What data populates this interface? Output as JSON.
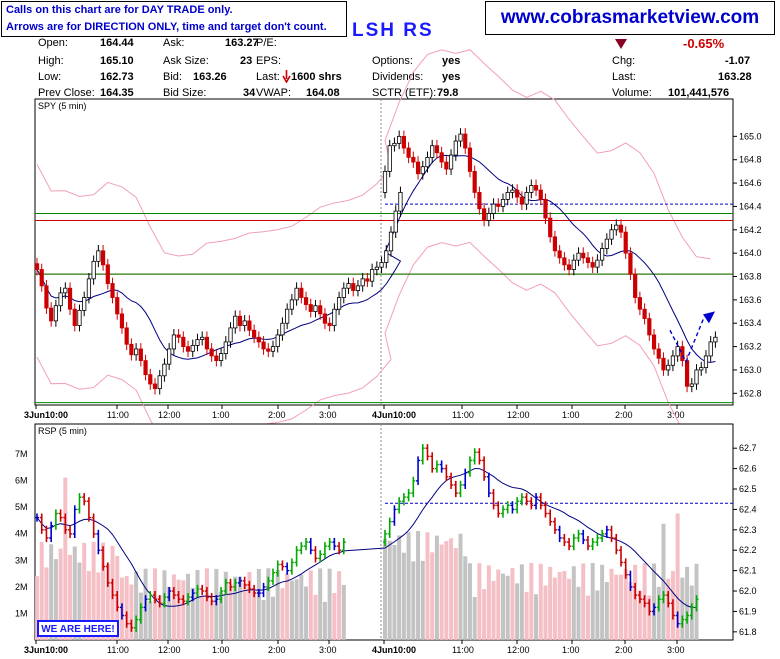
{
  "notes": {
    "line1": "Calls on this chart are for DAY TRADE only.",
    "line2": "Arrows are for DIRECTION ONLY, time and target don't count."
  },
  "website": "www.cobrasmarketview.com",
  "symbol": "LSH RS",
  "quote": {
    "open_label": "Open:",
    "open": "164.44",
    "high_label": "High:",
    "high": "165.10",
    "low_label": "Low:",
    "low": "162.73",
    "prev_label": "Prev Close:",
    "prev": "164.35",
    "ask_label": "Ask:",
    "ask": "163.27",
    "asksize_label": "Ask Size:",
    "asksize": "23",
    "bid_label": "Bid:",
    "bid": "163.26",
    "bidsize_label": "Bid Size:",
    "bidsize": "34",
    "pe_label": "P/E:",
    "eps_label": "EPS:",
    "last_label": "Last:",
    "last_trade": "1600 shrs",
    "vwap_label": "VWAP:",
    "vwap": "164.08",
    "options_label": "Options:",
    "options": "yes",
    "dividends_label": "Dividends:",
    "dividends": "yes",
    "sctr_label": "SCTR (ETF):",
    "sctr": "79.8",
    "chg_pct": "-0.65%",
    "chg_label": "Chg:",
    "chg": "-1.07",
    "lastp_label": "Last:",
    "lastp": "163.28",
    "volume_label": "Volume:",
    "volume": "101,441,576"
  },
  "colors": {
    "up": "#00aa00",
    "down": "#cc0000",
    "blue": "#0000cc",
    "ma": "#000080",
    "band": "#f2a0b4",
    "red_line": "#cc0000",
    "green_line": "#008800"
  },
  "badge": "WE ARE HERE!",
  "chart_data": [
    {
      "type": "candlestick",
      "title": "SPY (5 min)",
      "ylim": [
        162.7,
        165.2
      ],
      "y_ticks": [
        "165.0",
        "164.8",
        "164.6",
        "164.4",
        "164.2",
        "164.0",
        "163.8",
        "163.6",
        "163.4",
        "163.2",
        "163.0",
        "162.8"
      ],
      "y_tick_values": [
        165.0,
        164.8,
        164.6,
        164.4,
        164.2,
        164.0,
        163.8,
        163.6,
        163.4,
        163.2,
        163.0,
        162.8
      ],
      "x_ticks": [
        "3Jun10:00",
        "11:00",
        "12:00",
        "1:00",
        "2:00",
        "3:00",
        "4Jun10:00",
        "11:00",
        "12:00",
        "1:00",
        "2:00",
        "3:00"
      ],
      "bars_per_day": 78,
      "horizontal_lines": [
        {
          "value": 164.28,
          "color": "red"
        },
        {
          "value": 163.82,
          "color": "red"
        },
        {
          "value": 164.34,
          "color": "green"
        },
        {
          "value": 163.82,
          "color": "green"
        },
        {
          "value": 162.72,
          "color": "green"
        },
        {
          "value": 164.42,
          "color": "blue-dashed"
        }
      ],
      "arrow": {
        "from": 163.34,
        "via": 163.07,
        "to": 163.45
      },
      "closes": [
        163.86,
        163.72,
        163.53,
        163.42,
        163.55,
        163.66,
        163.7,
        163.52,
        163.38,
        163.51,
        163.62,
        163.78,
        163.93,
        164.02,
        163.9,
        163.74,
        163.62,
        163.48,
        163.36,
        163.22,
        163.13,
        163.18,
        163.08,
        162.96,
        162.88,
        162.84,
        162.95,
        163.05,
        163.18,
        163.3,
        163.28,
        163.2,
        163.16,
        163.21,
        163.26,
        163.28,
        163.18,
        163.12,
        163.08,
        163.14,
        163.24,
        163.36,
        163.46,
        163.38,
        163.42,
        163.34,
        163.28,
        163.24,
        163.18,
        163.16,
        163.2,
        163.3,
        163.4,
        163.52,
        163.6,
        163.7,
        163.62,
        163.56,
        163.5,
        163.55,
        163.48,
        163.4,
        163.38,
        163.52,
        163.62,
        163.7,
        163.74,
        163.68,
        163.72,
        163.78,
        163.76,
        163.86,
        163.88,
        163.92,
        164.02,
        164.18,
        164.36,
        164.52,
        164.7,
        164.92,
        164.94,
        165.0,
        164.9,
        164.82,
        164.78,
        164.68,
        164.74,
        164.82,
        164.92,
        164.86,
        164.78,
        164.72,
        164.84,
        164.96,
        165.02,
        164.9,
        164.7,
        164.52,
        164.38,
        164.28,
        164.34,
        164.42,
        164.4,
        164.46,
        164.52,
        164.54,
        164.48,
        164.42,
        164.52,
        164.58,
        164.54,
        164.46,
        164.3,
        164.14,
        164.02,
        163.96,
        163.9,
        163.86,
        163.94,
        164.0,
        163.96,
        163.92,
        163.88,
        163.94,
        164.04,
        164.12,
        164.2,
        164.24,
        164.18,
        164.0,
        163.82,
        163.62,
        163.52,
        163.44,
        163.3,
        163.18,
        163.1,
        163.0,
        163.04,
        163.12,
        163.2,
        163.08,
        162.86,
        162.88,
        163.0,
        163.02,
        163.12,
        163.24,
        163.28
      ]
    },
    {
      "type": "candlestick",
      "title": "RSP (5 min)",
      "ylim": [
        61.76,
        62.75
      ],
      "y_ticks": [
        "62.7",
        "62.6",
        "62.5",
        "62.4",
        "62.3",
        "62.2",
        "62.1",
        "62.0",
        "61.9",
        "61.8"
      ],
      "y_tick_values": [
        62.7,
        62.6,
        62.5,
        62.4,
        62.3,
        62.2,
        62.1,
        62.0,
        61.9,
        61.8
      ],
      "volume_ticks": [
        "7M",
        "6M",
        "5M",
        "4M",
        "3M",
        "2M",
        "1M"
      ],
      "volume_tick_values": [
        7,
        6,
        5,
        4,
        3,
        2,
        1
      ],
      "volume_max_m": 7.6,
      "x_ticks": [
        "3Jun10:00",
        "11:00",
        "12:00",
        "1:00",
        "2:00",
        "3:00",
        "4Jun10:00",
        "11:00",
        "12:00",
        "1:00",
        "2:00",
        "3:00"
      ],
      "horizontal_lines": [
        {
          "value": 62.43,
          "color": "blue-dashed"
        }
      ],
      "closes": [
        62.36,
        62.3,
        62.26,
        62.32,
        62.38,
        62.36,
        62.3,
        62.28,
        62.4,
        62.46,
        62.44,
        62.36,
        62.28,
        62.2,
        62.12,
        62.04,
        61.98,
        61.92,
        61.88,
        61.84,
        61.82,
        61.86,
        61.92,
        61.96,
        61.98,
        61.96,
        61.94,
        61.97,
        62.0,
        61.98,
        61.96,
        61.95,
        61.97,
        61.99,
        62.01,
        62.0,
        61.97,
        61.95,
        61.96,
        62.0,
        62.04,
        62.02,
        62.04,
        62.05,
        62.03,
        62.01,
        61.99,
        61.99,
        62.02,
        62.05,
        62.09,
        62.13,
        62.12,
        62.1,
        62.14,
        62.2,
        62.22,
        62.24,
        62.2,
        62.16,
        62.18,
        62.22,
        62.24,
        62.22,
        62.2,
        62.24,
        62.28,
        62.34,
        62.4,
        62.44,
        62.46,
        62.48,
        62.54,
        62.64,
        62.7,
        62.66,
        62.6,
        62.62,
        62.6,
        62.56,
        62.52,
        62.48,
        62.52,
        62.58,
        62.64,
        62.68,
        62.64,
        62.56,
        62.48,
        62.42,
        62.38,
        62.4,
        62.42,
        62.4,
        62.44,
        62.46,
        62.44,
        62.42,
        62.46,
        62.42,
        62.38,
        62.34,
        62.3,
        62.26,
        62.24,
        62.22,
        62.26,
        62.28,
        62.25,
        62.22,
        62.24,
        62.26,
        62.28,
        62.3,
        62.26,
        62.2,
        62.14,
        62.08,
        62.02,
        61.98,
        61.96,
        61.94,
        61.9,
        61.92,
        61.96,
        61.98,
        61.94,
        61.88,
        61.84,
        61.86,
        61.88,
        61.92,
        61.96
      ]
    }
  ]
}
